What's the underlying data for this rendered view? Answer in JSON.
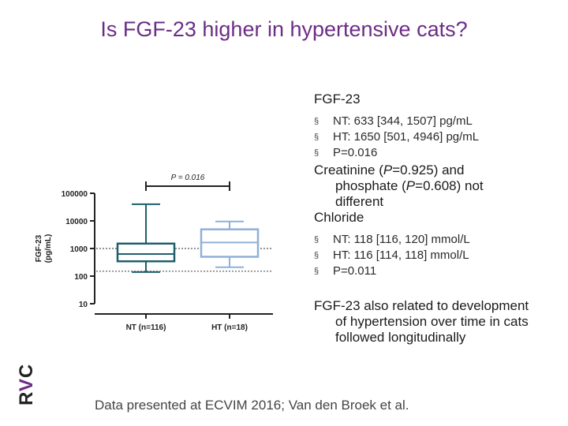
{
  "slide": {
    "title": "Is FGF-23 higher in hypertensive cats?",
    "footer": "Data presented at ECVIM 2016; Van den Broek et al.",
    "logo": {
      "r": "R",
      "v": "V",
      "c": "C"
    }
  },
  "notes": {
    "fgf_heading": "FGF-23",
    "fgf_bullets": [
      {
        "bullet": "§",
        "text": "NT: 633 [344, 1507] pg/mL"
      },
      {
        "bullet": "§",
        "text": "HT: 1650 [501, 4946] pg/mL"
      },
      {
        "bullet": "§",
        "text": "P=0.016"
      }
    ],
    "creatinine": {
      "pre": "Creatinine (",
      "p1": "P",
      "mid": "=0.925) and",
      "line2a": "phosphate (",
      "p2": "P",
      "line2b": "=0.608) not",
      "line3": "different"
    },
    "chloride_heading": "Chloride",
    "chloride_bullets": [
      {
        "bullet": "§",
        "text": "NT: 118 [116, 120] mmol/L"
      },
      {
        "bullet": "§",
        "text": "HT: 116 [114, 118] mmol/L"
      },
      {
        "bullet": "§",
        "text": "P=0.011"
      }
    ],
    "longitudinal": {
      "line1": "FGF-23 also related to development",
      "line2": "of hypertension over time in cats",
      "line3": "followed longitudinally"
    }
  },
  "chart_data": {
    "type": "box",
    "ylabel": "FGF-23 (pg/mL)",
    "yscale": "log",
    "ylim": [
      10,
      100000
    ],
    "yticks": [
      {
        "value": 10,
        "label": "10"
      },
      {
        "value": 100,
        "label": "100"
      },
      {
        "value": 1000,
        "label": "1000"
      },
      {
        "value": 10000,
        "label": "10000"
      },
      {
        "value": 100000,
        "label": "100000"
      }
    ],
    "reference_lines": [
      1000,
      150
    ],
    "groups": [
      {
        "name": "NT (n=116)",
        "whisker_low": 140,
        "q1": 344,
        "median": 633,
        "q3": 1507,
        "whisker_high": 40000,
        "color": "#1f5e6b"
      },
      {
        "name": "HT (n=18)",
        "whisker_low": 210,
        "q1": 501,
        "median": 1650,
        "q3": 4946,
        "whisker_high": 9500,
        "color": "#8fb0d8"
      }
    ],
    "annotation": "P = 0.016"
  }
}
